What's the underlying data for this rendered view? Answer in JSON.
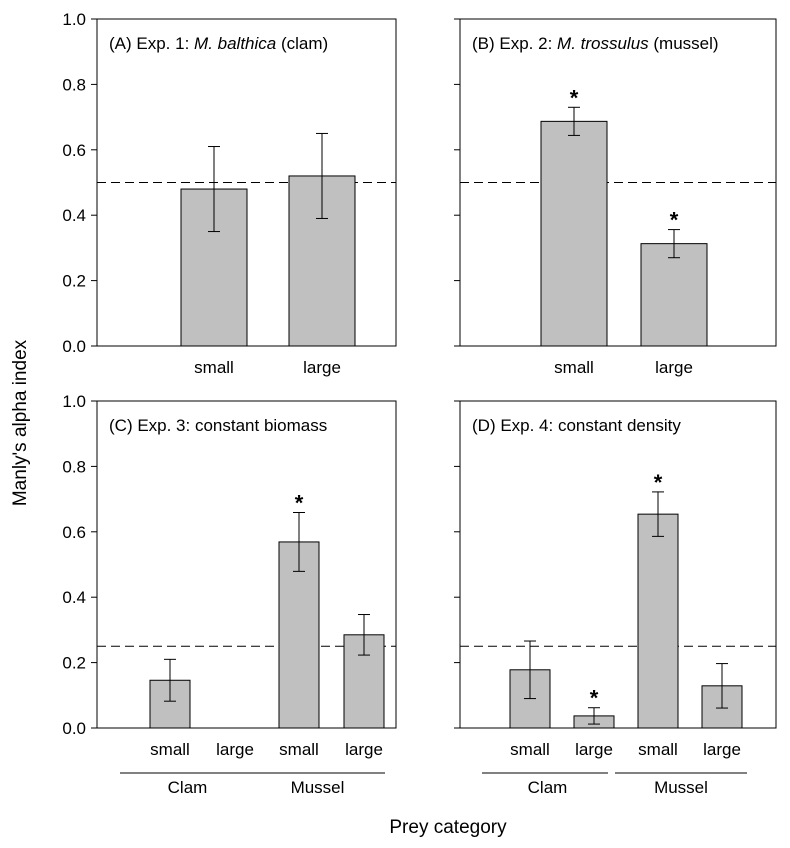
{
  "figure": {
    "ylabel": "Manly's alpha index",
    "xlabel": "Prey category"
  },
  "chart_data": [
    {
      "type": "bar",
      "title_prefix": "(A) Exp. 1: ",
      "title_italic": "M. balthica",
      "title_suffix": " (clam)",
      "categories": [
        "small",
        "large"
      ],
      "values": [
        0.48,
        0.52
      ],
      "errors": [
        0.13,
        0.13
      ],
      "significant": [
        false,
        false
      ],
      "reference_line": 0.5,
      "ylim": [
        0,
        1.0
      ],
      "yticks": [
        "0.0",
        "0.2",
        "0.4",
        "0.6",
        "0.8",
        "1.0"
      ],
      "groups": []
    },
    {
      "type": "bar",
      "title_prefix": "(B) Exp. 2: ",
      "title_italic": "M. trossulus",
      "title_suffix": " (mussel)",
      "categories": [
        "small",
        "large"
      ],
      "values": [
        0.687,
        0.313
      ],
      "errors": [
        0.043,
        0.043
      ],
      "significant": [
        true,
        true
      ],
      "reference_line": 0.5,
      "ylim": [
        0,
        1.0
      ],
      "yticks": [],
      "groups": []
    },
    {
      "type": "bar",
      "title_prefix": "(C) Exp. 3: constant biomass",
      "title_italic": "",
      "title_suffix": "",
      "categories": [
        "small",
        "large",
        "small",
        "large"
      ],
      "values": [
        0.146,
        0.0,
        0.569,
        0.285
      ],
      "errors": [
        0.064,
        0.0,
        0.09,
        0.062
      ],
      "significant": [
        false,
        false,
        true,
        false
      ],
      "reference_line": 0.25,
      "ylim": [
        0,
        1.0
      ],
      "yticks": [
        "0.0",
        "0.2",
        "0.4",
        "0.6",
        "0.8",
        "1.0"
      ],
      "groups": [
        "Clam",
        "Mussel"
      ]
    },
    {
      "type": "bar",
      "title_prefix": "(D) Exp. 4: constant density",
      "title_italic": "",
      "title_suffix": "",
      "categories": [
        "small",
        "large",
        "small",
        "large"
      ],
      "values": [
        0.178,
        0.037,
        0.654,
        0.129
      ],
      "errors": [
        0.088,
        0.025,
        0.068,
        0.068
      ],
      "significant": [
        false,
        true,
        true,
        false
      ],
      "reference_line": 0.25,
      "ylim": [
        0,
        1.0
      ],
      "yticks": [],
      "groups": [
        "Clam",
        "Mussel"
      ]
    }
  ]
}
